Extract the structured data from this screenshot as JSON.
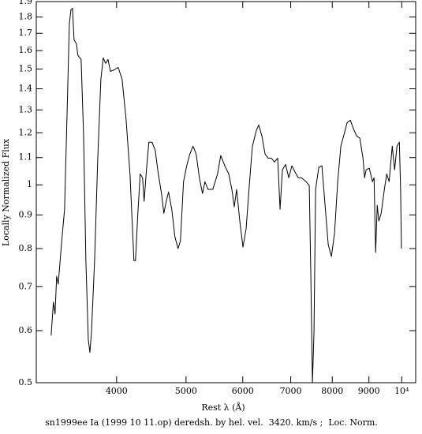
{
  "chart_data": {
    "type": "line",
    "x_label": "Rest λ (Å)",
    "y_label": "Locally Normalized Flux",
    "caption": "sn1999ee Ia (1999 10 11.op) deredsh. by hel. vel.  3420. km/s ;  Loc. Norm.",
    "log_x": true,
    "log_y": true,
    "grid": false,
    "xlim": [
      3090,
      10460
    ],
    "ylim": [
      0.5,
      1.9
    ],
    "xticks": [
      4000,
      5000,
      6000,
      7000,
      8000,
      9000,
      {
        "value": 10000,
        "label": "10⁴"
      }
    ],
    "yticks": [
      0.5,
      0.6,
      0.7,
      0.8,
      0.9,
      1,
      1.1,
      1.2,
      1.3,
      1.4,
      1.5,
      1.6,
      1.7,
      1.8,
      1.9
    ],
    "series": [
      {
        "color": "#000000",
        "x": [
          3241,
          3265,
          3282,
          3299,
          3316,
          3350,
          3384,
          3419,
          3436,
          3454,
          3471,
          3489,
          3515,
          3533,
          3569,
          3597,
          3624,
          3652,
          3671,
          3690,
          3727,
          3765,
          3803,
          3832,
          3861,
          3891,
          3921,
          3970,
          4020,
          4071,
          4123,
          4176,
          4229,
          4250,
          4283,
          4315,
          4348,
          4370,
          4403,
          4437,
          4482,
          4528,
          4574,
          4621,
          4656,
          4692,
          4727,
          4776,
          4824,
          4873,
          4911,
          4960,
          5011,
          5062,
          5114,
          5166,
          5219,
          5272,
          5313,
          5367,
          5449,
          5533,
          5590,
          5663,
          5736,
          5794,
          5839,
          5883,
          5943,
          6004,
          6065,
          6127,
          6189,
          6268,
          6316,
          6380,
          6446,
          6511,
          6578,
          6645,
          6713,
          6764,
          6816,
          6886,
          6956,
          7027,
          7099,
          7171,
          7244,
          7356,
          7430,
          7468,
          7506,
          7544,
          7583,
          7660,
          7738,
          7817,
          7897,
          7978,
          8059,
          8141,
          8224,
          8308,
          8393,
          8479,
          8565,
          8652,
          8741,
          8830,
          8875,
          8920,
          9011,
          9103,
          9150,
          9197,
          9244,
          9291,
          9362,
          9458,
          9530,
          9603,
          9701,
          9775,
          9850,
          9925,
          9965,
          9991
        ],
        "values": [
          0.59,
          0.663,
          0.636,
          0.726,
          0.706,
          0.811,
          0.918,
          1.408,
          1.756,
          1.846,
          1.856,
          1.662,
          1.639,
          1.573,
          1.551,
          1.193,
          0.767,
          0.582,
          0.556,
          0.598,
          0.767,
          1.098,
          1.448,
          1.56,
          1.53,
          1.551,
          1.488,
          1.496,
          1.509,
          1.448,
          1.261,
          1.039,
          0.767,
          0.767,
          0.905,
          1.039,
          1.025,
          0.944,
          1.054,
          1.161,
          1.161,
          1.129,
          1.039,
          0.97,
          0.905,
          0.944,
          0.975,
          0.918,
          0.834,
          0.8,
          0.822,
          1.011,
          1.069,
          1.114,
          1.145,
          1.114,
          1.025,
          0.97,
          1.011,
          0.984,
          0.984,
          1.039,
          1.108,
          1.069,
          1.039,
          0.984,
          0.926,
          0.984,
          0.881,
          0.804,
          0.857,
          0.997,
          1.145,
          1.21,
          1.233,
          1.187,
          1.114,
          1.098,
          1.098,
          1.083,
          1.098,
          0.918,
          1.054,
          1.074,
          1.025,
          1.069,
          1.045,
          1.025,
          1.025,
          1.011,
          0.997,
          0.726,
          0.5,
          0.598,
          0.984,
          1.063,
          1.069,
          0.931,
          0.811,
          0.778,
          0.845,
          1.011,
          1.145,
          1.193,
          1.244,
          1.254,
          1.216,
          1.187,
          1.177,
          1.098,
          1.025,
          1.054,
          1.06,
          1.011,
          1.025,
          0.789,
          0.931,
          0.881,
          0.905,
          0.984,
          1.039,
          1.011,
          1.145,
          1.054,
          1.145,
          1.161,
          0.984,
          0.8
        ]
      }
    ]
  }
}
